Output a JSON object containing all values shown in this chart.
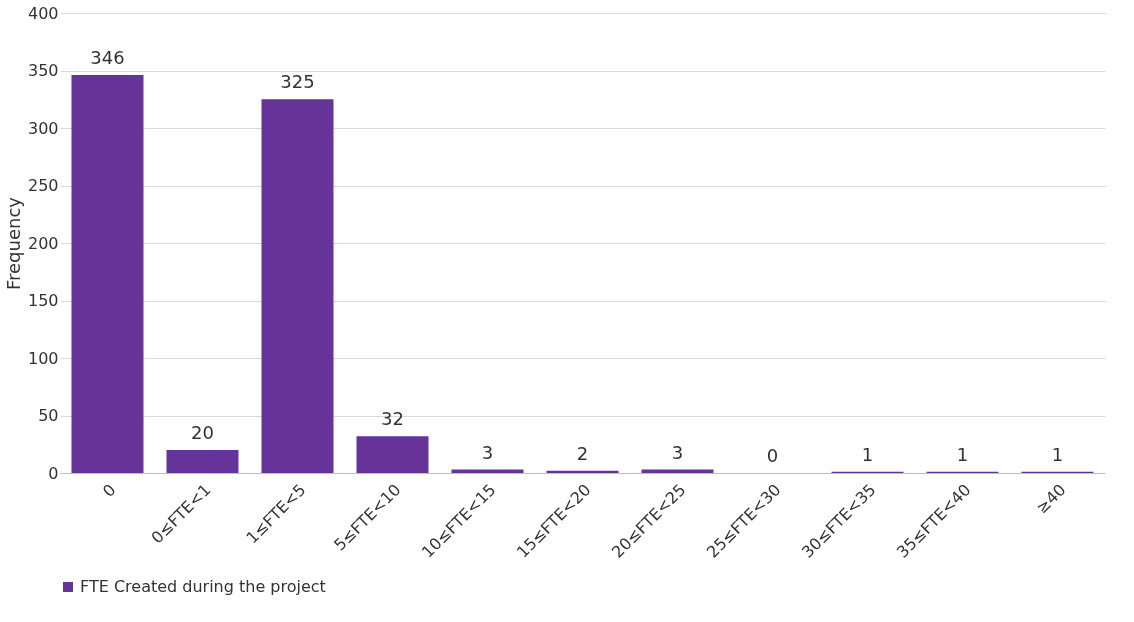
{
  "chart_data": {
    "type": "bar",
    "categories": [
      "0",
      "0≤FTE<1",
      "1≤FTE<5",
      "5≤FTE<10",
      "10≤FTE<15",
      "15≤FTE<20",
      "20≤FTE<25",
      "25≤FTE<30",
      "30≤FTE<35",
      "35≤FTE<40",
      "≥40"
    ],
    "series": [
      {
        "name": "FTE Created during the project",
        "color": "#663399",
        "values": [
          346,
          20,
          325,
          32,
          3,
          2,
          3,
          0,
          1,
          1,
          1
        ]
      }
    ],
    "ylabel": "Frequency",
    "ylim": [
      0,
      400
    ],
    "yticks": [
      0,
      50,
      100,
      150,
      200,
      250,
      300,
      350,
      400
    ],
    "grid": "y",
    "legend": "bottom",
    "data_labels": true
  }
}
